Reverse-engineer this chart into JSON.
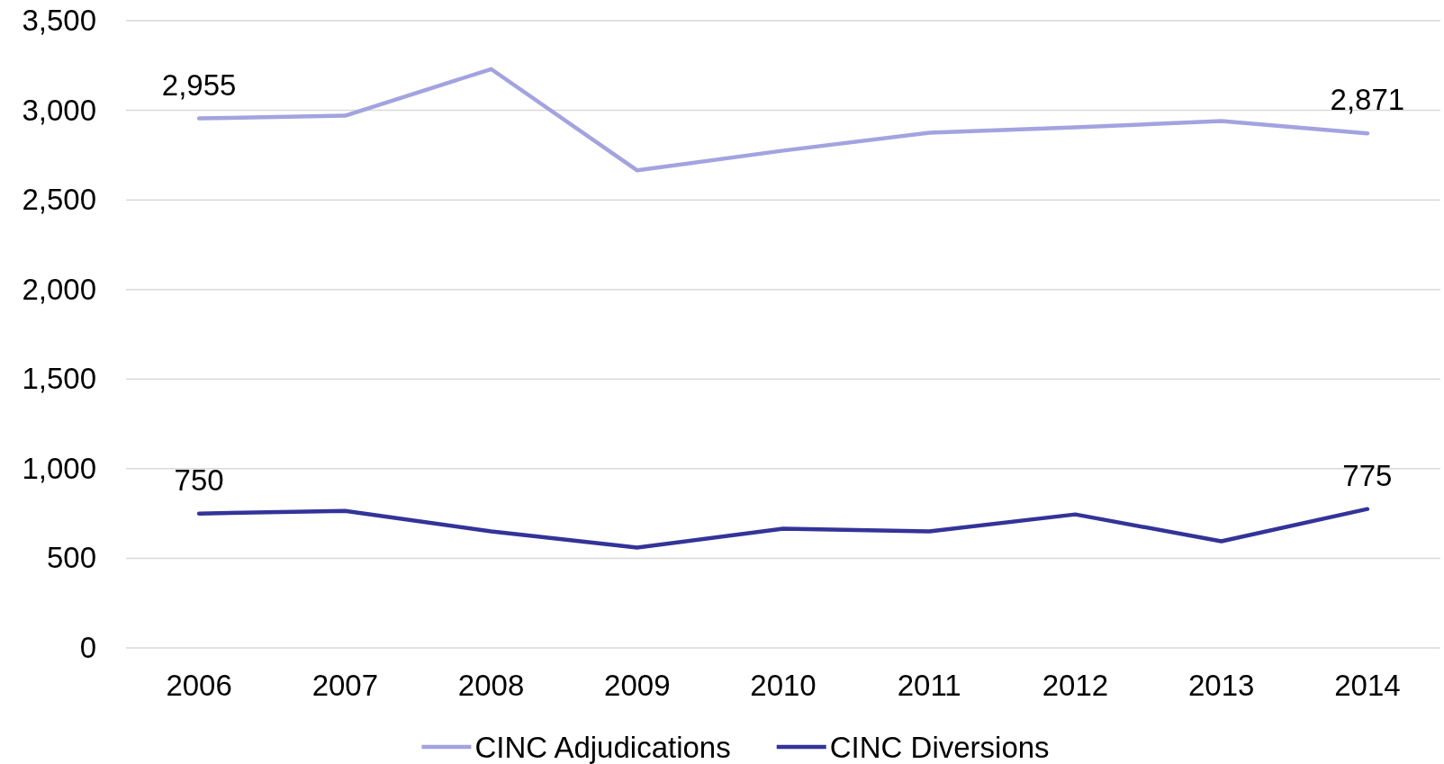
{
  "chart_data": {
    "type": "line",
    "categories": [
      "2006",
      "2007",
      "2008",
      "2009",
      "2010",
      "2011",
      "2012",
      "2013",
      "2014"
    ],
    "series": [
      {
        "name": "CINC Adjudications",
        "color": "#a3a3e0",
        "values": [
          2955,
          2970,
          3230,
          2665,
          2775,
          2875,
          2905,
          2940,
          2871
        ],
        "value_labels": [
          "2,955",
          null,
          null,
          null,
          null,
          null,
          null,
          null,
          "2,871"
        ]
      },
      {
        "name": "CINC Diversions",
        "color": "#333399",
        "values": [
          750,
          765,
          650,
          560,
          665,
          650,
          745,
          595,
          775
        ],
        "value_labels": [
          "750",
          null,
          null,
          null,
          null,
          null,
          null,
          null,
          "775"
        ]
      }
    ],
    "ylim": [
      0,
      3500
    ],
    "yticks": [
      0,
      500,
      {
        "value": 1000,
        "label": "1,000"
      },
      {
        "value": 1500,
        "label": "1,500"
      },
      {
        "value": 2000,
        "label": "2,000"
      },
      {
        "value": 2500,
        "label": "2,500"
      },
      {
        "value": 3000,
        "label": "3,000"
      },
      {
        "value": 3500,
        "label": "3,500"
      }
    ],
    "grid": "y",
    "legend": "bottom"
  }
}
